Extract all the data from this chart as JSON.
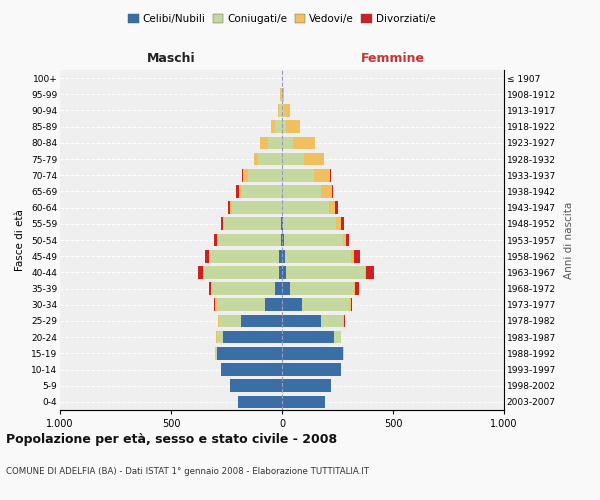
{
  "age_groups": [
    "0-4",
    "5-9",
    "10-14",
    "15-19",
    "20-24",
    "25-29",
    "30-34",
    "35-39",
    "40-44",
    "45-49",
    "50-54",
    "55-59",
    "60-64",
    "65-69",
    "70-74",
    "75-79",
    "80-84",
    "85-89",
    "90-94",
    "95-99",
    "100+"
  ],
  "birth_years": [
    "2003-2007",
    "1998-2002",
    "1993-1997",
    "1988-1992",
    "1983-1987",
    "1978-1982",
    "1973-1977",
    "1968-1972",
    "1963-1967",
    "1958-1962",
    "1953-1957",
    "1948-1952",
    "1943-1947",
    "1938-1942",
    "1933-1937",
    "1928-1932",
    "1923-1927",
    "1918-1922",
    "1913-1917",
    "1908-1912",
    "≤ 1907"
  ],
  "male": {
    "celibi": [
      200,
      235,
      275,
      295,
      265,
      185,
      75,
      30,
      15,
      15,
      5,
      5,
      2,
      0,
      0,
      0,
      0,
      0,
      0,
      0,
      0
    ],
    "coniugati": [
      0,
      0,
      0,
      5,
      30,
      100,
      220,
      285,
      335,
      310,
      285,
      255,
      225,
      185,
      155,
      110,
      65,
      30,
      15,
      5,
      2
    ],
    "vedovi": [
      0,
      0,
      0,
      0,
      2,
      2,
      5,
      5,
      5,
      5,
      5,
      5,
      5,
      10,
      20,
      15,
      35,
      20,
      5,
      2,
      0
    ],
    "divorziati": [
      0,
      0,
      0,
      0,
      2,
      2,
      5,
      10,
      25,
      15,
      10,
      10,
      10,
      10,
      5,
      0,
      0,
      0,
      0,
      0,
      0
    ]
  },
  "female": {
    "nubili": [
      195,
      220,
      265,
      275,
      235,
      175,
      90,
      35,
      20,
      15,
      10,
      5,
      0,
      0,
      0,
      0,
      0,
      0,
      0,
      0,
      0
    ],
    "coniugate": [
      0,
      0,
      0,
      5,
      30,
      100,
      215,
      290,
      355,
      295,
      265,
      240,
      210,
      175,
      145,
      100,
      50,
      20,
      10,
      5,
      2
    ],
    "vedove": [
      0,
      0,
      0,
      0,
      2,
      5,
      5,
      5,
      5,
      15,
      15,
      20,
      30,
      50,
      70,
      90,
      100,
      60,
      25,
      5,
      0
    ],
    "divorziate": [
      0,
      0,
      0,
      0,
      0,
      2,
      5,
      15,
      35,
      25,
      10,
      15,
      10,
      5,
      5,
      0,
      0,
      0,
      0,
      0,
      0
    ]
  },
  "color_celibi": "#3a6ea5",
  "color_coniugati": "#c5d8a0",
  "color_vedovi": "#f0c060",
  "color_divorziati": "#cc2222",
  "title": "Popolazione per età, sesso e stato civile - 2008",
  "subtitle": "COMUNE DI ADELFIA (BA) - Dati ISTAT 1° gennaio 2008 - Elaborazione TUTTITALIA.IT",
  "xlabel_left": "Maschi",
  "xlabel_right": "Femmine",
  "ylabel_left": "Fasce di età",
  "ylabel_right": "Anni di nascita",
  "xmax": 1000,
  "legend_labels": [
    "Celibi/Nubili",
    "Coniugati/e",
    "Vedovi/e",
    "Divorziati/e"
  ],
  "bg_color": "#f9f9f9",
  "plot_bg": "#efefef"
}
